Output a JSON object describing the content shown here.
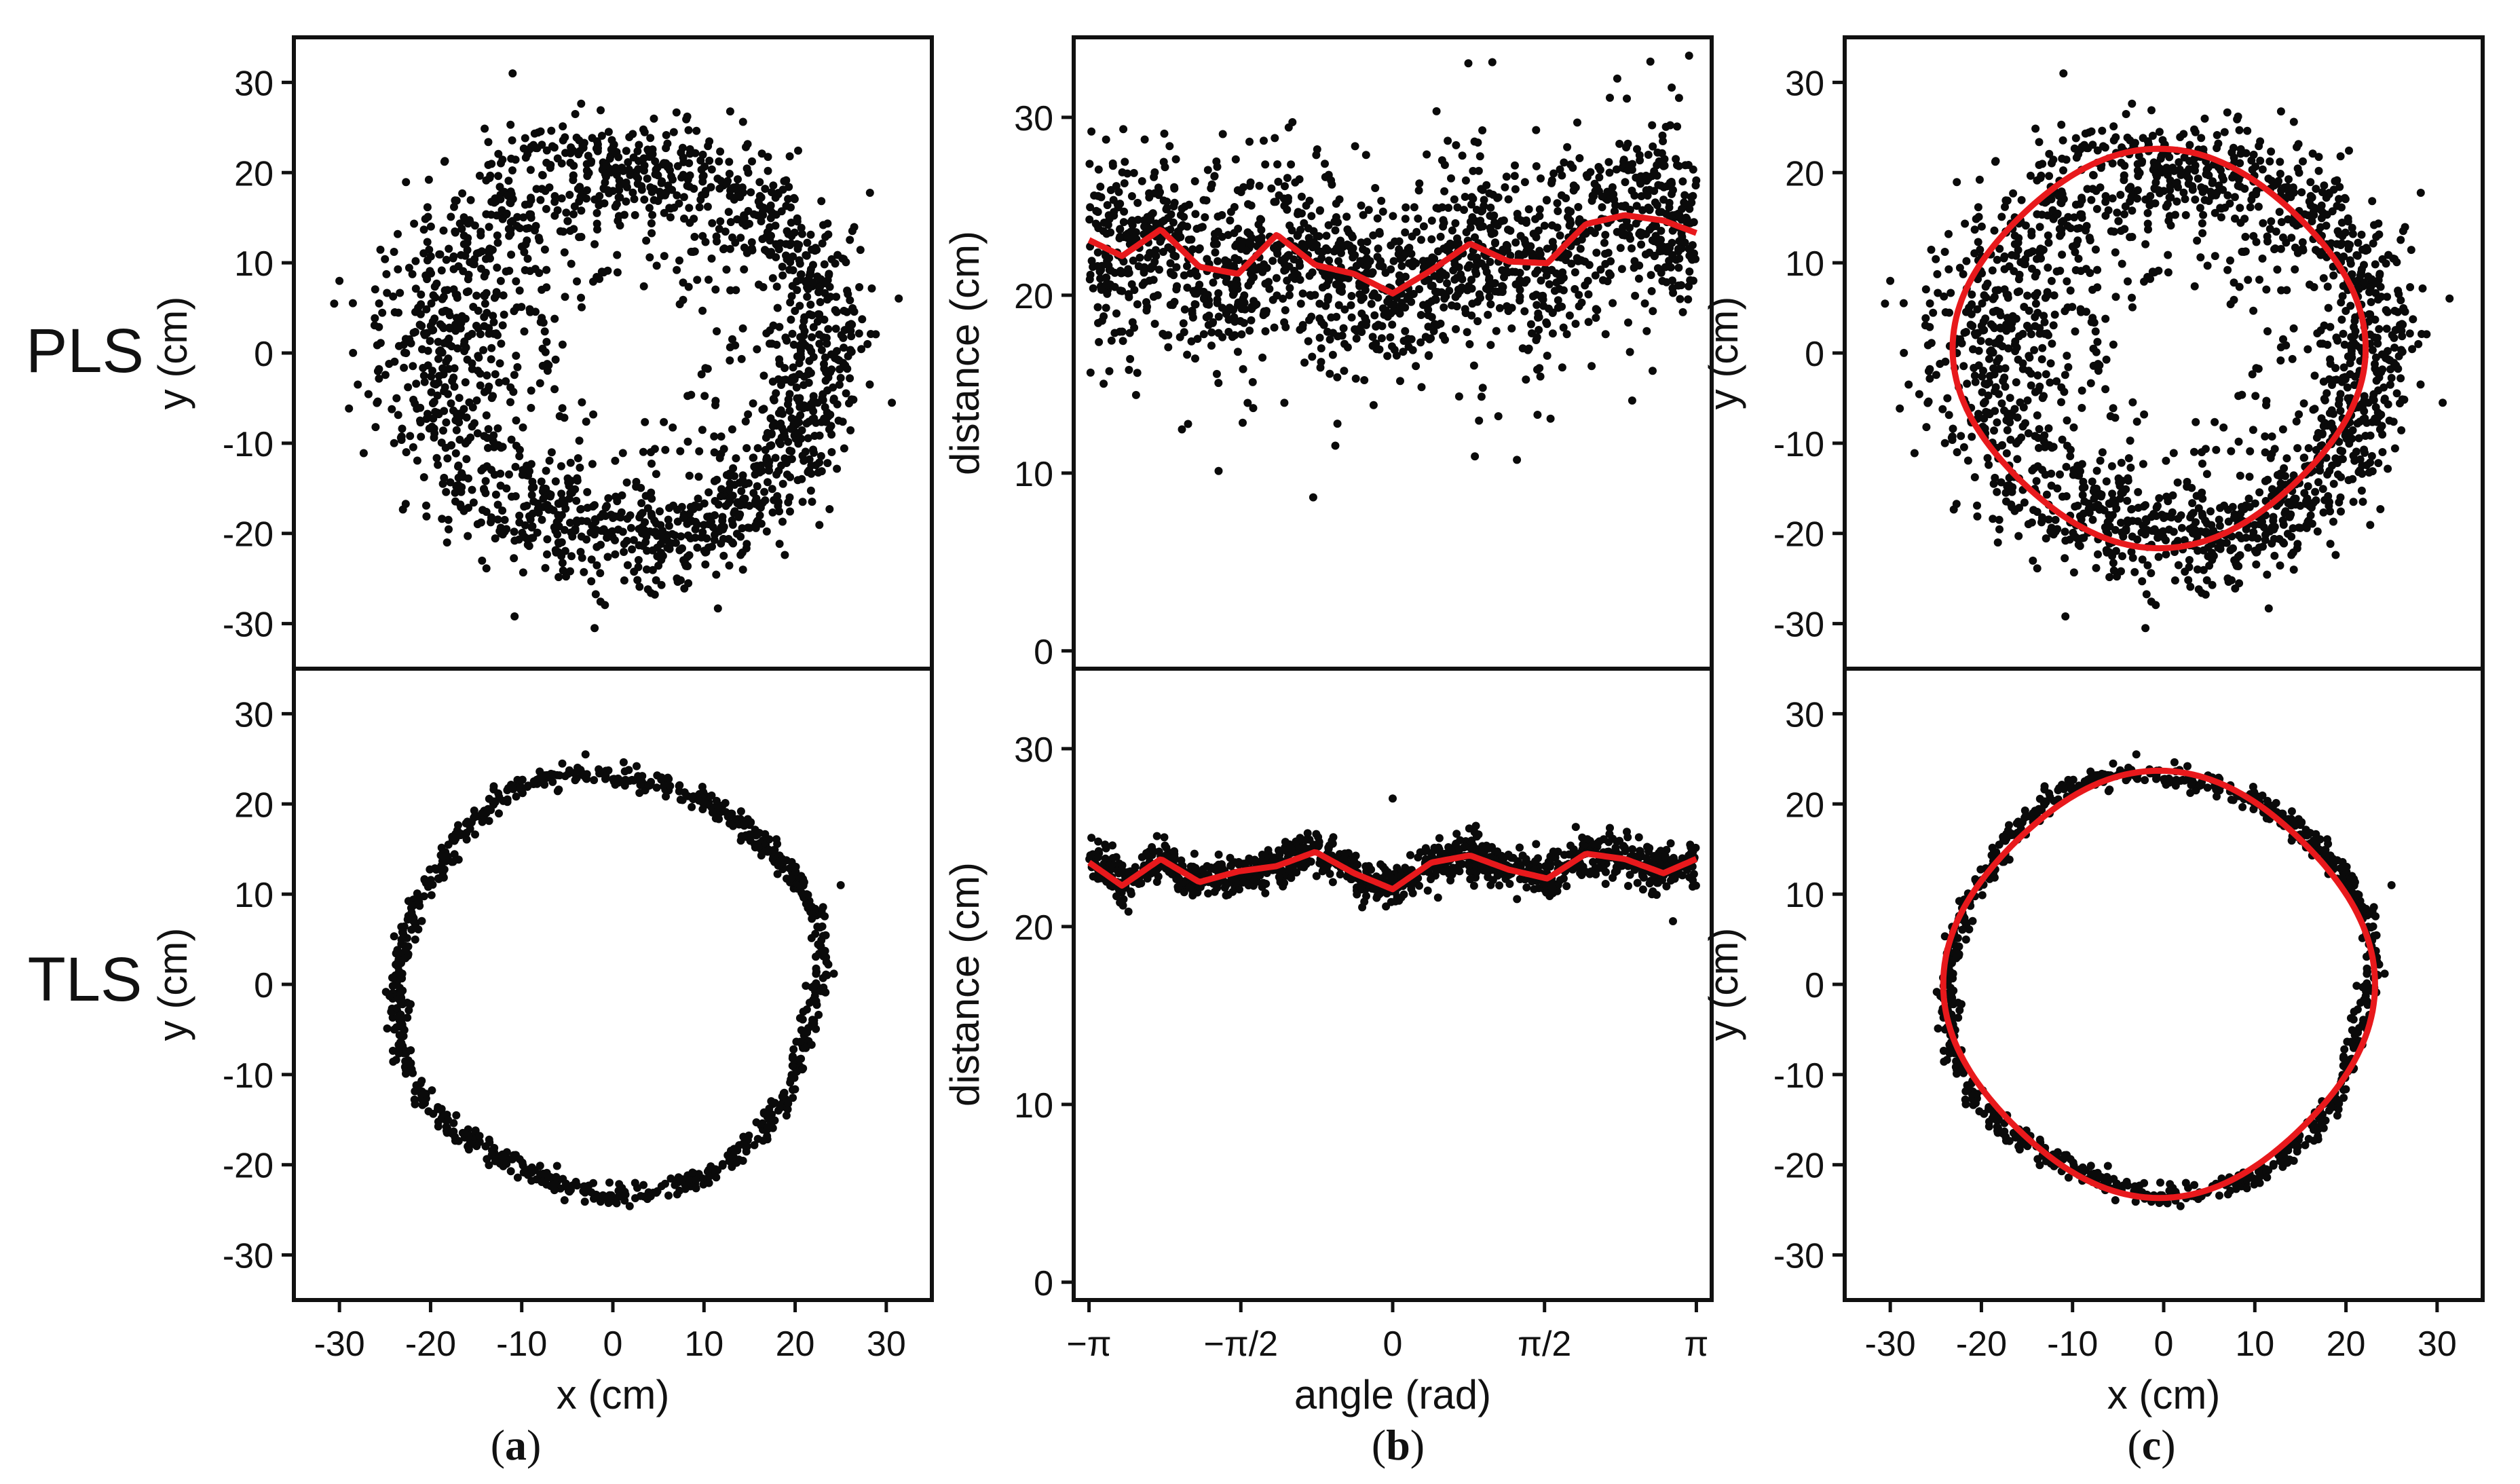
{
  "figure": {
    "row_labels": [
      "PLS",
      "TLS"
    ],
    "captions": [
      {
        "open": "(",
        "letter": "a",
        "close": ")"
      },
      {
        "open": "(",
        "letter": "b",
        "close": ")"
      },
      {
        "open": "(",
        "letter": "c",
        "close": ")"
      }
    ]
  },
  "colors": {
    "points": "#0a0a0a",
    "fit": "#e8191c",
    "axis": "#111111"
  },
  "chart_data": [
    {
      "id": "a-pls",
      "type": "scatter",
      "column": "a",
      "row": "PLS",
      "title": "",
      "xlabel": "",
      "ylabel": "y (cm)",
      "xlim": [
        -35,
        35
      ],
      "ylim": [
        -35,
        35
      ],
      "grid": false,
      "legend": "none",
      "ytick_labels": [
        "-30",
        "-20",
        "-10",
        "0",
        "10",
        "20",
        "30"
      ],
      "xtick_labels": [],
      "series": [
        {
          "name": "points",
          "shape": "ring",
          "cx": 2.0,
          "cy": 0.0,
          "rx": 21.5,
          "ry": 21.0,
          "noise_profile": [
            [
              -3.14,
              4.5
            ],
            [
              -2.4,
              4.0
            ],
            [
              -1.57,
              3.0
            ],
            [
              0.0,
              3.0
            ],
            [
              1.0,
              3.5
            ],
            [
              1.57,
              3.0
            ],
            [
              2.4,
              4.0
            ],
            [
              3.14,
              4.5
            ]
          ],
          "n_points": 3000,
          "outlier_fraction": 0.12,
          "example_extremes": [
            {
              "x": -11,
              "y": 31
            },
            {
              "x": -2,
              "y": -30.5
            },
            {
              "x": -30,
              "y": 8
            }
          ]
        }
      ]
    },
    {
      "id": "b-pls",
      "type": "scatter+line",
      "column": "b",
      "row": "PLS",
      "title": "",
      "xlabel": "",
      "ylabel": "distance (cm)",
      "xlim": [
        -3.3,
        3.3
      ],
      "ylim": [
        -1,
        34.5
      ],
      "grid": false,
      "legend": "none",
      "ytick_labels": [
        "0",
        "10",
        "20",
        "30"
      ],
      "xtick_labels": [],
      "series": [
        {
          "name": "points",
          "n_points": 2600,
          "spread": 2.5,
          "outlier_fraction": 0.1
        },
        {
          "name": "fit",
          "x": [
            -3.14,
            -2.8,
            -2.4,
            -2.0,
            -1.6,
            -1.2,
            -0.8,
            -0.4,
            0.0,
            0.4,
            0.8,
            1.2,
            1.6,
            2.0,
            2.4,
            2.8,
            3.14
          ],
          "y": [
            23.1,
            22.2,
            23.7,
            21.6,
            21.2,
            23.4,
            21.7,
            21.2,
            20.1,
            21.4,
            22.9,
            21.9,
            21.8,
            24.0,
            24.5,
            24.2,
            23.5
          ]
        }
      ]
    },
    {
      "id": "c-pls",
      "type": "scatter+line",
      "column": "c",
      "row": "PLS",
      "title": "",
      "xlabel": "",
      "ylabel": "y (cm)",
      "xlim": [
        -35,
        35
      ],
      "ylim": [
        -35,
        35
      ],
      "grid": false,
      "legend": "none",
      "ytick_labels": [
        "-30",
        "-20",
        "-10",
        "0",
        "10",
        "20",
        "30"
      ],
      "xtick_labels": [],
      "series": [
        {
          "name": "points",
          "same_as": "a-pls"
        },
        {
          "name": "fit",
          "shape": "closed-curve",
          "cx": -0.5,
          "cy": 0.5,
          "rx": 22.0,
          "ry": 21.5
        }
      ]
    },
    {
      "id": "a-tls",
      "type": "scatter",
      "column": "a",
      "row": "TLS",
      "title": "",
      "xlabel": "x (cm)",
      "ylabel": "y (cm)",
      "xlim": [
        -35,
        35
      ],
      "ylim": [
        -35,
        35
      ],
      "grid": false,
      "legend": "none",
      "xtick_labels": [
        "-30",
        "-20",
        "-10",
        "0",
        "10",
        "20",
        "30"
      ],
      "ytick_labels": [
        "-30",
        "-20",
        "-10",
        "0",
        "10",
        "20",
        "30"
      ],
      "series": [
        {
          "name": "points",
          "shape": "ring",
          "cx": -0.5,
          "cy": 0.0,
          "r": 23.2,
          "noise": 0.6,
          "n_points": 1400,
          "example_extremes": [
            {
              "x": 25,
              "y": 11
            },
            {
              "x": -3,
              "y": 25.5
            }
          ]
        }
      ]
    },
    {
      "id": "b-tls",
      "type": "scatter+line",
      "column": "b",
      "row": "TLS",
      "title": "",
      "xlabel": "angle (rad)",
      "ylabel": "distance (cm)",
      "xlim": [
        -3.3,
        3.3
      ],
      "ylim": [
        -1,
        34.5
      ],
      "grid": false,
      "legend": "none",
      "ytick_labels": [
        "0",
        "10",
        "20",
        "30"
      ],
      "xtick_labels": [
        "−π",
        "−π/2",
        "0",
        "π/2",
        "π"
      ],
      "xticks": [
        -3.14159,
        -1.5708,
        0,
        1.5708,
        3.14159
      ],
      "series": [
        {
          "name": "points",
          "n_points": 1800,
          "spread": 0.6,
          "example_extremes": [
            {
              "x": 0.0,
              "y": 27.2
            },
            {
              "x": 2.9,
              "y": 20.3
            }
          ]
        },
        {
          "name": "fit",
          "x": [
            -3.14,
            -2.8,
            -2.4,
            -2.0,
            -1.6,
            -1.2,
            -0.8,
            -0.4,
            0.0,
            0.4,
            0.8,
            1.2,
            1.6,
            2.0,
            2.4,
            2.8,
            3.14
          ],
          "y": [
            23.6,
            22.3,
            23.8,
            22.5,
            23.1,
            23.4,
            24.2,
            23.0,
            22.1,
            23.6,
            24.0,
            23.2,
            22.7,
            24.1,
            23.8,
            23.0,
            23.8
          ]
        }
      ]
    },
    {
      "id": "c-tls",
      "type": "scatter+line",
      "column": "c",
      "row": "TLS",
      "title": "",
      "xlabel": "x (cm)",
      "ylabel": "y (cm)",
      "xlim": [
        -35,
        35
      ],
      "ylim": [
        -35,
        35
      ],
      "grid": false,
      "legend": "none",
      "xtick_labels": [
        "-30",
        "-20",
        "-10",
        "0",
        "10",
        "20",
        "30"
      ],
      "ytick_labels": [
        "-30",
        "-20",
        "-10",
        "0",
        "10",
        "20",
        "30"
      ],
      "series": [
        {
          "name": "points",
          "same_as": "a-tls"
        },
        {
          "name": "fit",
          "shape": "closed-curve",
          "cx": -0.5,
          "cy": 0.0,
          "r": 23.0
        }
      ]
    }
  ]
}
